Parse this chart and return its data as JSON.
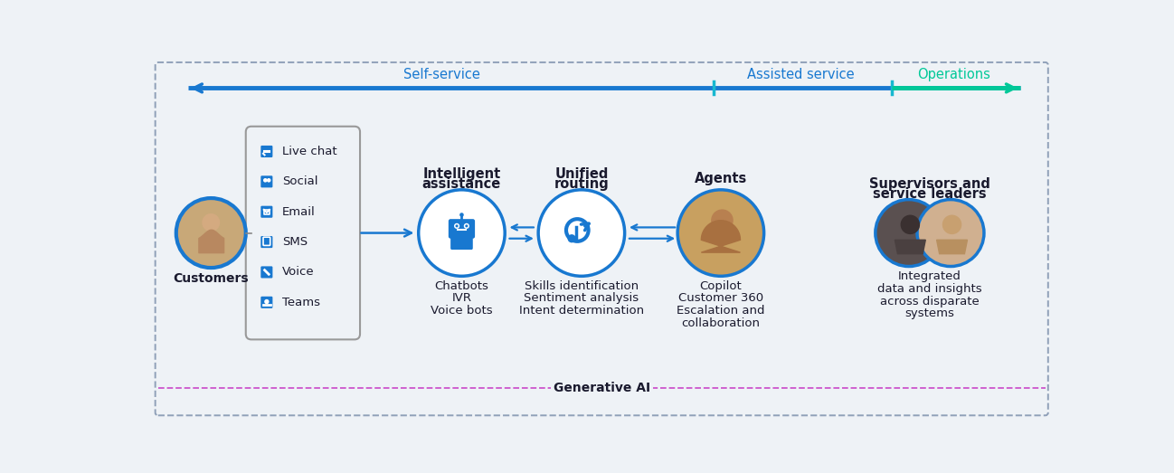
{
  "bg_color": "#eef2f6",
  "inner_bg": "#eef2f6",
  "outer_border_color": "#8fa0b8",
  "gen_ai_border_color": "#cc55cc",
  "gen_ai_label": "Generative AI",
  "arrow_blue": "#1878d0",
  "arrow_cyan": "#18b8d0",
  "arrow_green": "#00c898",
  "self_service_label": "Self-service",
  "assisted_service_label": "Assisted service",
  "operations_label": "Operations",
  "customers_label": "Customers",
  "channels": [
    "Live chat",
    "Social",
    "Email",
    "SMS",
    "Voice",
    "Teams"
  ],
  "ia_label1": "Intelligent",
  "ia_label2": "assistance",
  "ia_items": [
    "Chatbots",
    "IVR",
    "Voice bots"
  ],
  "ur_label1": "Unified",
  "ur_label2": "routing",
  "ur_items": [
    "Skills identification",
    "Sentiment analysis",
    "Intent determination"
  ],
  "agents_label": "Agents",
  "agents_items": [
    "Copilot",
    "Customer 360",
    "Escalation and",
    "collaboration"
  ],
  "sup_label1": "Supervisors and",
  "sup_label2": "service leaders",
  "sup_items": [
    "Integrated",
    "data and insights",
    "across disparate",
    "systems"
  ],
  "circle_border": "#1878d0",
  "icon_blue": "#1878d0",
  "text_dark": "#1a1a2e",
  "text_mid": "#333333"
}
